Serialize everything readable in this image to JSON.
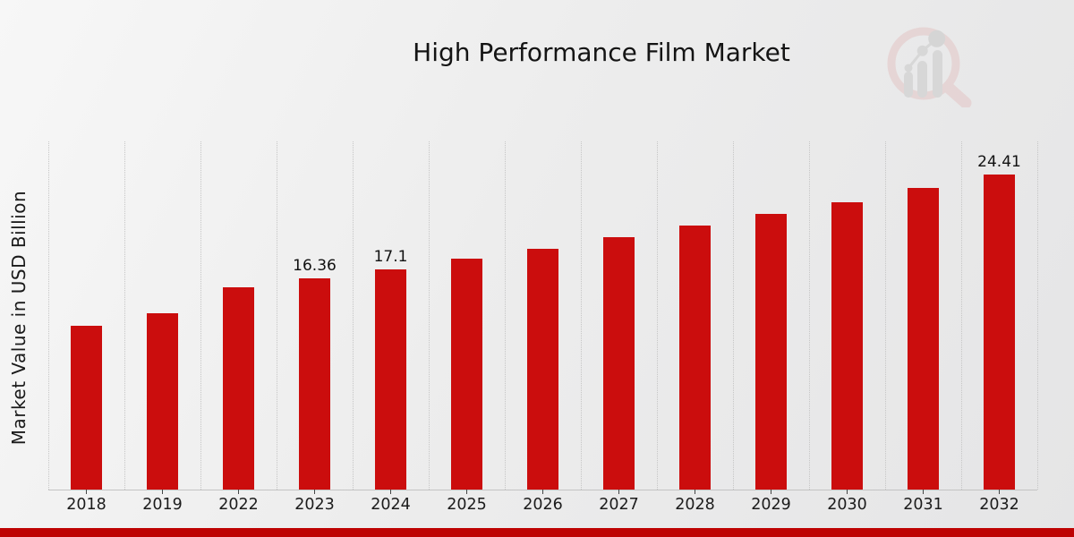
{
  "title": "High Performance Film Market",
  "logo_name": "market-research-future-watermark",
  "colors": {
    "bar": "#CB0D0D",
    "accent_strip": "#BE0303",
    "gridline": "#C6C6C6",
    "text": "#141414",
    "logo_ring_pink": "#E3C2C2",
    "logo_gray": "#C6C6C6"
  },
  "chart_data": {
    "type": "bar",
    "title": "High Performance Film Market",
    "xlabel": "",
    "ylabel": "Market Value in USD Billion",
    "categories": [
      "2018",
      "2019",
      "2022",
      "2023",
      "2024",
      "2025",
      "2026",
      "2027",
      "2028",
      "2029",
      "2030",
      "2031",
      "2032"
    ],
    "values": [
      12.7,
      13.7,
      15.7,
      16.36,
      17.1,
      17.9,
      18.7,
      19.6,
      20.5,
      21.4,
      22.3,
      23.4,
      24.41
    ],
    "bar_labels": {
      "2023": "16.36",
      "2024": "17.1",
      "2032": "24.41"
    },
    "ylim": [
      0,
      27
    ],
    "grid": "vertical-dotted-category-boundaries",
    "legend": "none",
    "y_tick_labels": "none",
    "bar_color": "#CB0D0D"
  }
}
